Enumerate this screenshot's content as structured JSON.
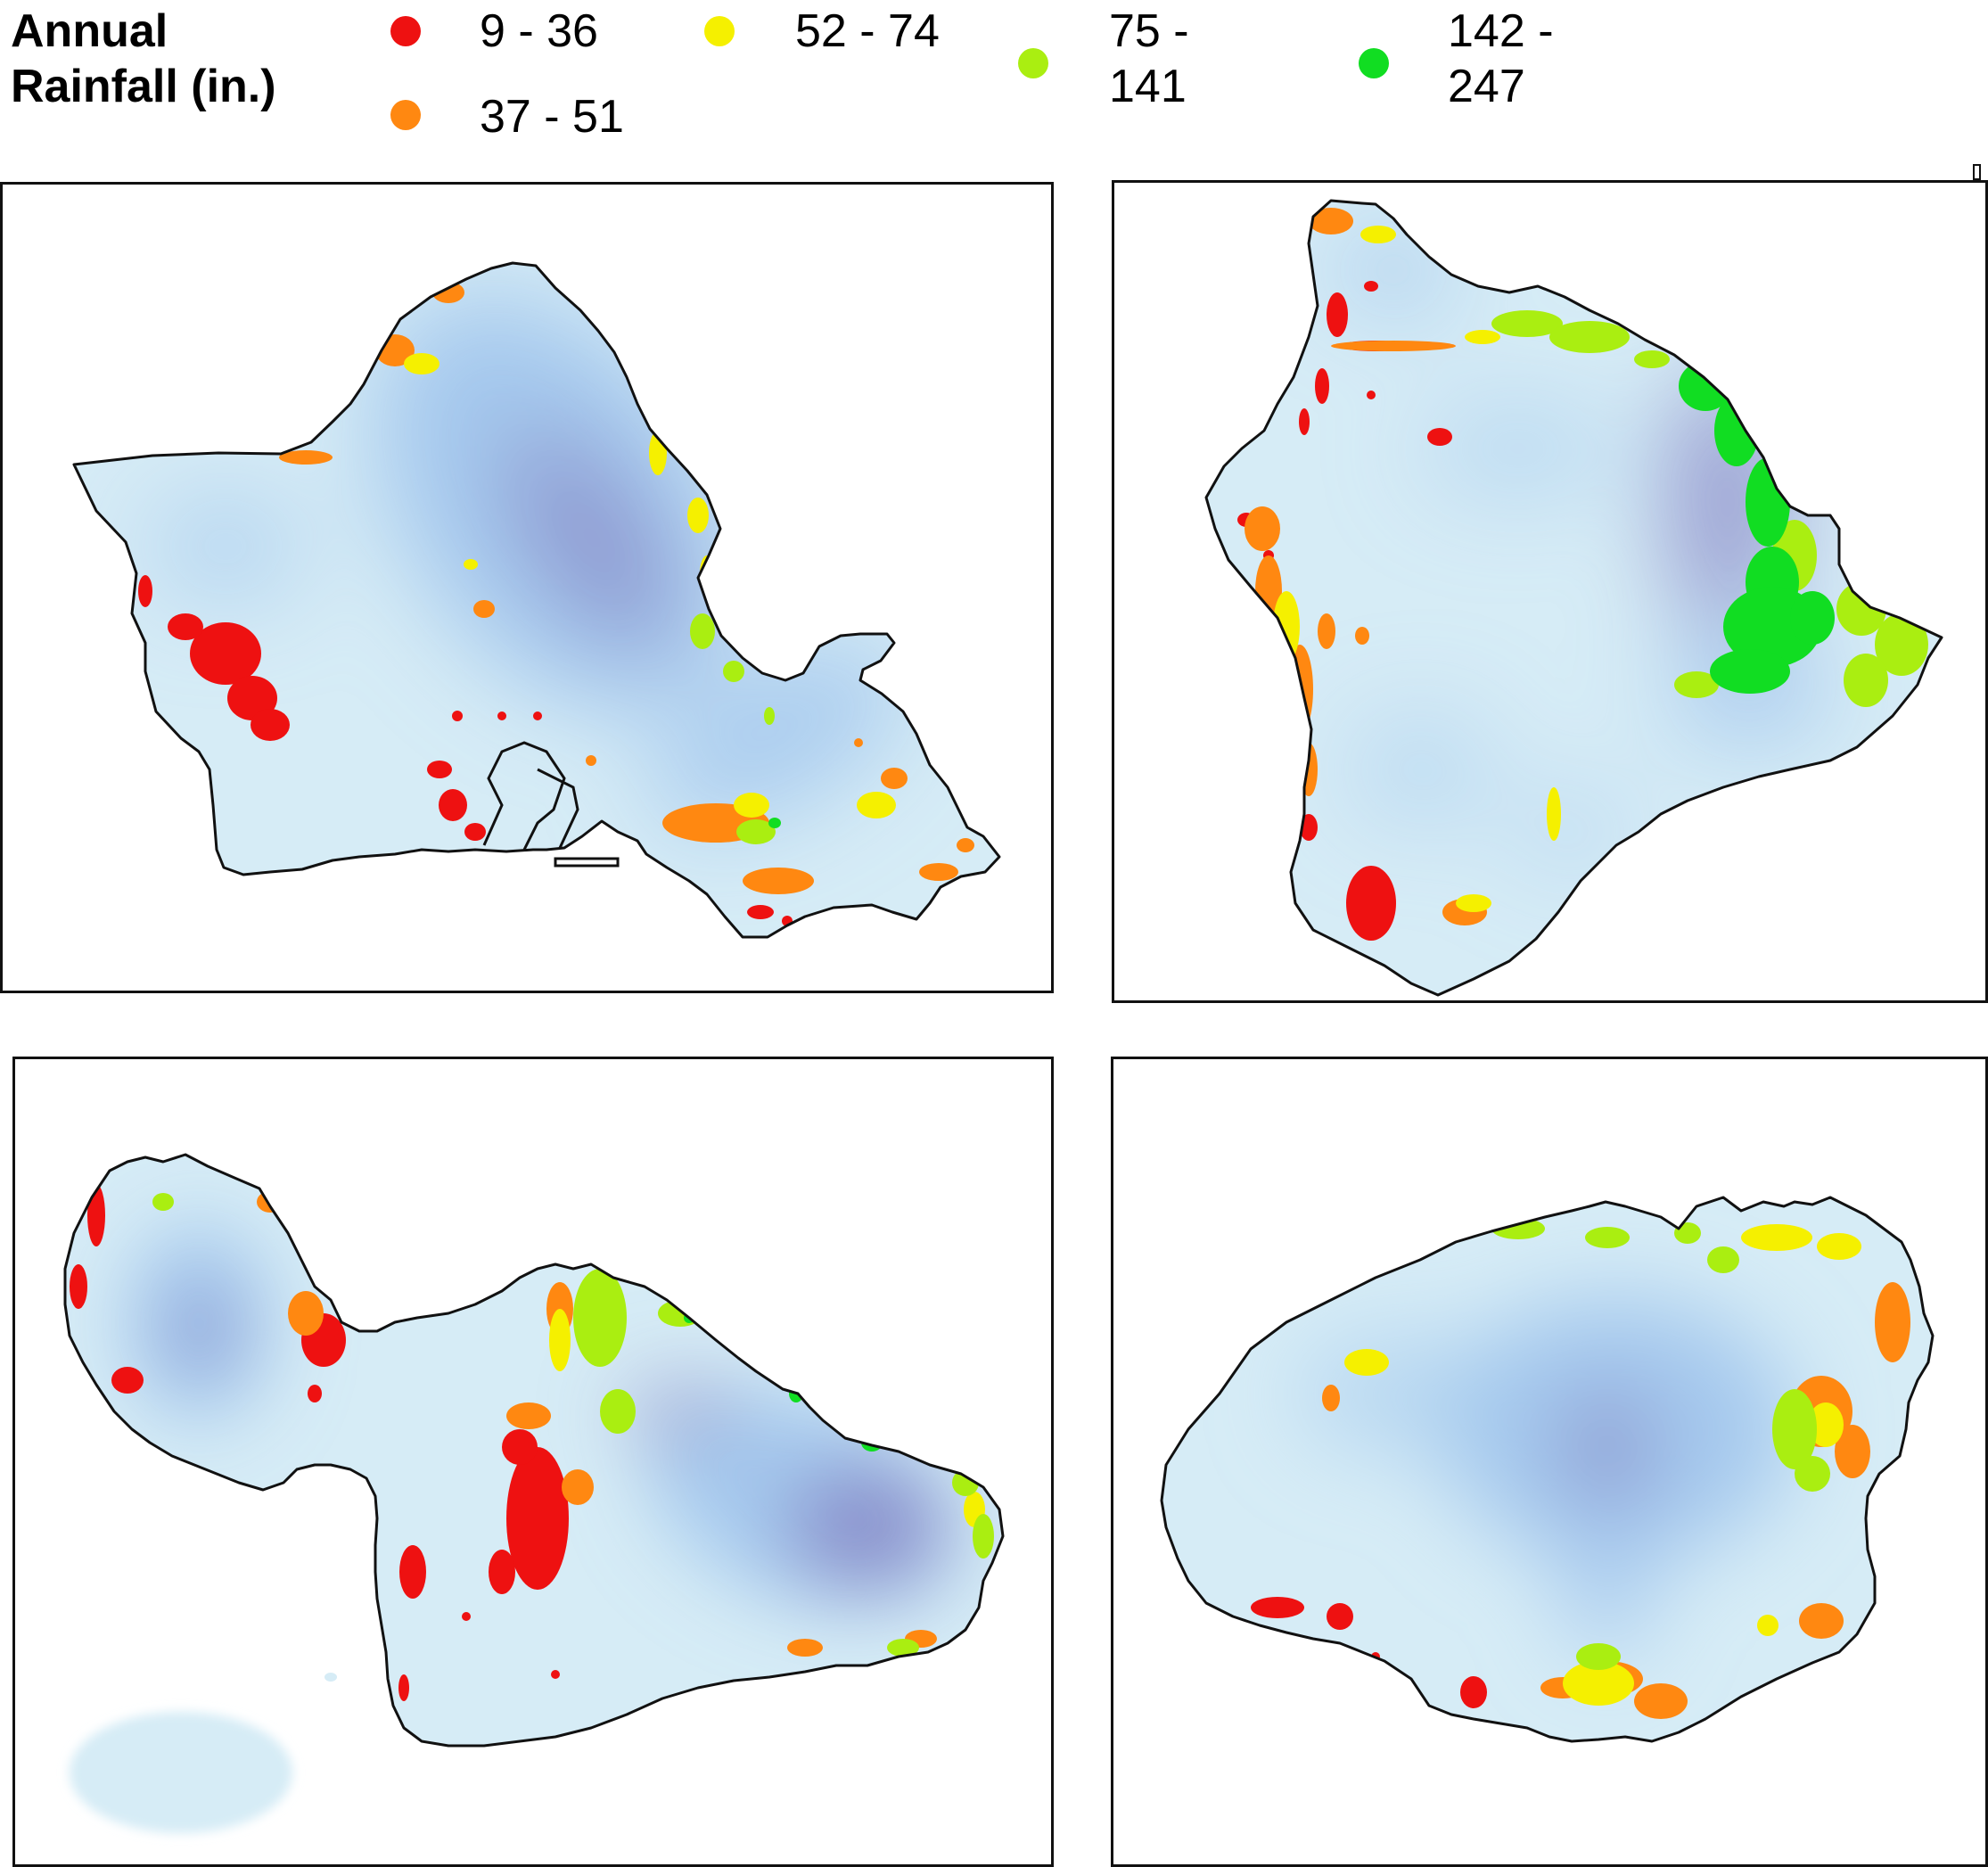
{
  "legend": {
    "title_line1": "Annual",
    "title_line2": "Rainfall (in.)",
    "classes": [
      {
        "label_line1": "9 - 36",
        "label_line2": "",
        "color": "#ee1111"
      },
      {
        "label_line1": "37 - 51",
        "label_line2": "",
        "color": "#ff8811"
      },
      {
        "label_line1": "52 - 74",
        "label_line2": "",
        "color": "#f5f000"
      },
      {
        "label_line1": "75 -",
        "label_line2": "141",
        "color": "#aaee11"
      },
      {
        "label_line1": "142 -",
        "label_line2": "247",
        "color": "#11dd22"
      }
    ]
  },
  "maps": [
    {
      "island": "oahu"
    },
    {
      "island": "hawaii"
    },
    {
      "island": "maui"
    },
    {
      "island": "kauai"
    }
  ],
  "colors": {
    "outline": "#111111",
    "surface_dry": "#d6ecf6",
    "surface_mid": "#9cc2ec",
    "surface_wet": "#7f7ec2"
  }
}
